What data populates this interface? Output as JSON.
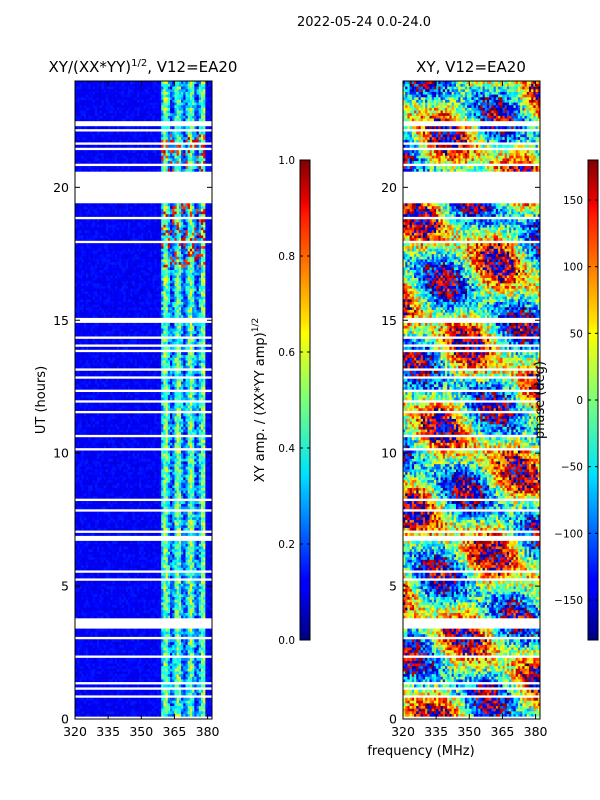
{
  "suptitle": "2022-05-24 0.0-24.0",
  "xlabel_shared": "frequency (MHz)",
  "chart_data": [
    {
      "type": "heatmap",
      "title_main": "XY/(XX*YY)",
      "title_sup": "1/2",
      "title_tail": ", V12=EA20",
      "ylabel": "UT (hours)",
      "xlim": [
        320,
        382
      ],
      "ylim": [
        0,
        24
      ],
      "xticks": [
        "320",
        "335",
        "350",
        "365",
        "380"
      ],
      "xtick_values": [
        320,
        335,
        350,
        365,
        380
      ],
      "yticks": [
        "0",
        "5",
        "10",
        "15",
        "20"
      ],
      "ytick_values": [
        0,
        5,
        10,
        15,
        20
      ],
      "colorbar": {
        "label_main": "XY amp. / (XX*YY amp)",
        "label_sup": "1/2",
        "range": [
          0.0,
          1.0
        ],
        "ticks": [
          "0.0",
          "0.2",
          "0.4",
          "0.6",
          "0.8",
          "1.0"
        ],
        "tick_values": [
          0.0,
          0.2,
          0.4,
          0.6,
          0.8,
          1.0
        ],
        "colormap": "jet"
      },
      "data_gap_hours": [
        [
          3.4,
          3.7
        ],
        [
          19.4,
          20.6
        ]
      ],
      "rfi_band_mhz": [
        359,
        378
      ],
      "background_level": 0.12
    },
    {
      "type": "heatmap",
      "title": "XY, V12=EA20",
      "xlim": [
        320,
        382
      ],
      "ylim": [
        0,
        24
      ],
      "xticks": [
        "320",
        "335",
        "350",
        "365",
        "380"
      ],
      "xtick_values": [
        320,
        335,
        350,
        365,
        380
      ],
      "yticks": [
        "0",
        "5",
        "10",
        "15",
        "20"
      ],
      "ytick_values": [
        0,
        5,
        10,
        15,
        20
      ],
      "colorbar": {
        "label": "phase (deg)",
        "range": [
          -180,
          180
        ],
        "ticks": [
          "−150",
          "−100",
          "−50",
          "0",
          "50",
          "100",
          "150"
        ],
        "tick_values": [
          -150,
          -100,
          -50,
          0,
          50,
          100,
          150
        ],
        "colormap": "jet"
      },
      "data_gap_hours": [
        [
          3.4,
          3.7
        ],
        [
          19.4,
          20.6
        ]
      ]
    }
  ]
}
